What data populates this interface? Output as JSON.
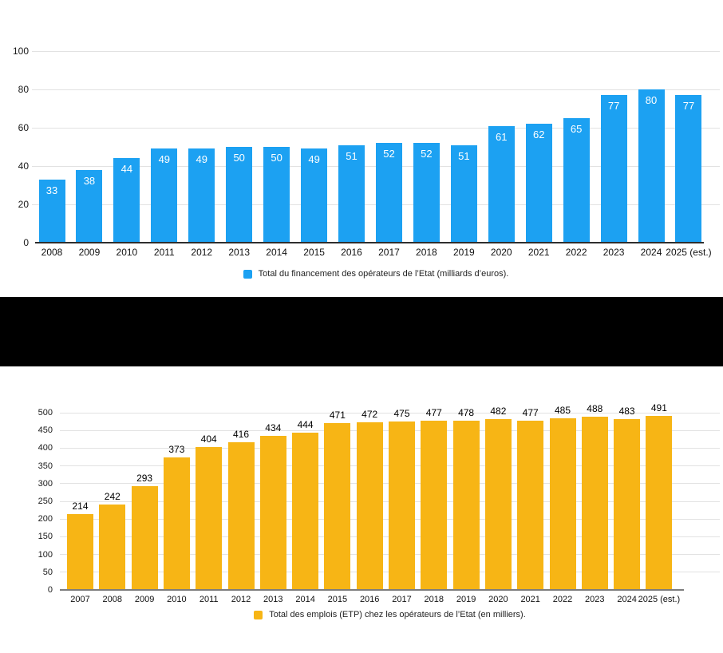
{
  "page": {
    "background_color": "#ffffff",
    "redaction_band_color": "#000000"
  },
  "chart_data": [
    {
      "type": "bar",
      "title": "",
      "xlabel": "",
      "ylabel": "",
      "categories": [
        "2008",
        "2009",
        "2010",
        "2011",
        "2012",
        "2013",
        "2014",
        "2015",
        "2016",
        "2017",
        "2018",
        "2019",
        "2020",
        "2021",
        "2022",
        "2023",
        "2024",
        "2025 (est.)"
      ],
      "values": [
        33,
        38,
        44,
        49,
        49,
        50,
        50,
        49,
        51,
        52,
        52,
        51,
        61,
        62,
        65,
        77,
        80,
        77
      ],
      "ylim": [
        0,
        100
      ],
      "yticks": [
        0,
        20,
        40,
        60,
        80,
        100
      ],
      "grid": true,
      "legend": "Total du financement des opérateurs de l’Etat (milliards d’euros).",
      "legend_position": "bottom",
      "bar_color": "#1ca1f2",
      "value_label_color": "#ffffff",
      "value_label_position": "inside"
    },
    {
      "type": "bar",
      "title": "",
      "xlabel": "",
      "ylabel": "",
      "categories": [
        "2007",
        "2008",
        "2009",
        "2010",
        "2011",
        "2012",
        "2013",
        "2014",
        "2015",
        "2016",
        "2017",
        "2018",
        "2019",
        "2020",
        "2021",
        "2022",
        "2023",
        "2024",
        "2025 (est.)"
      ],
      "values": [
        214,
        242,
        293,
        373,
        404,
        416,
        434,
        444,
        471,
        472,
        475,
        477,
        478,
        482,
        477,
        485,
        488,
        483,
        491
      ],
      "ylim": [
        0,
        500
      ],
      "yticks": [
        0,
        50,
        100,
        150,
        200,
        250,
        300,
        350,
        400,
        450,
        500
      ],
      "grid": true,
      "legend": "Total des emplois (ETP) chez les opérateurs de l’Etat (en milliers).",
      "legend_position": "bottom",
      "bar_color": "#f7b515",
      "value_label_color": "#000000",
      "value_label_position": "above"
    }
  ]
}
